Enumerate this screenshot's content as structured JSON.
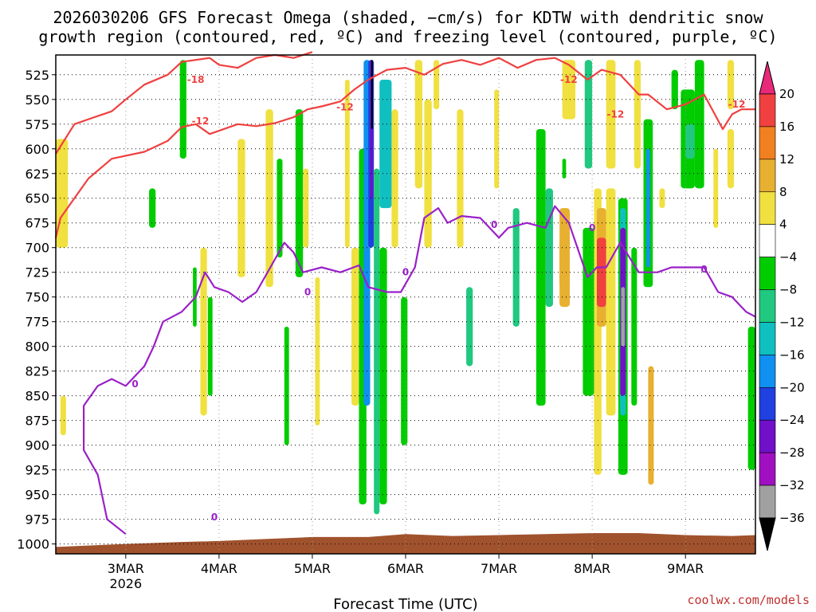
{
  "chart_data": {
    "type": "heatmap",
    "title": "2026030206 GFS Forecast Omega (shaded, −cm/s) for KDTW with dendritic snow",
    "subtitle": "growth region (contoured, red, ºC) and freezing level (contoured, purple, ºC)",
    "xlabel": "Forecast Time (UTC)",
    "credit": "coolwx.com/models",
    "y_ticks": [
      525,
      550,
      575,
      600,
      625,
      650,
      675,
      700,
      725,
      750,
      775,
      800,
      825,
      850,
      875,
      900,
      925,
      950,
      975,
      1000
    ],
    "ylim": [
      1010,
      505
    ],
    "x_ticks": [
      {
        "day": 1,
        "label": "3MAR",
        "sub": "2026"
      },
      {
        "day": 2,
        "label": "4MAR",
        "sub": ""
      },
      {
        "day": 3,
        "label": "5MAR",
        "sub": ""
      },
      {
        "day": 4,
        "label": "6MAR",
        "sub": ""
      },
      {
        "day": 5,
        "label": "7MAR",
        "sub": ""
      },
      {
        "day": 6,
        "label": "8MAR",
        "sub": ""
      },
      {
        "day": 7,
        "label": "9MAR",
        "sub": ""
      }
    ],
    "xlim": [
      0.25,
      7.75
    ],
    "colorbar": {
      "labels": [
        "20",
        "16",
        "12",
        "8",
        "4",
        "−4",
        "−8",
        "−12",
        "−16",
        "−20",
        "−24",
        "−28",
        "−32",
        "−36"
      ],
      "colors": [
        "#e8297a",
        "#f04040",
        "#f08020",
        "#e8b030",
        "#f0e040",
        "#ffffff",
        "#00cc00",
        "#20c880",
        "#10c0c0",
        "#1090f0",
        "#2040e0",
        "#7010c8",
        "#a010c0",
        "#a0a0a0",
        "#000000"
      ]
    },
    "series": [
      {
        "name": "-12",
        "color": "#f04040",
        "points": [
          [
            0.25,
            605
          ],
          [
            0.35,
            590
          ],
          [
            0.45,
            575
          ],
          [
            0.6,
            570
          ],
          [
            0.85,
            562
          ],
          [
            1.0,
            550
          ],
          [
            1.2,
            535
          ],
          [
            1.45,
            525
          ],
          [
            1.6,
            512
          ],
          [
            1.9,
            508
          ],
          [
            2.0,
            515
          ],
          [
            2.2,
            518
          ],
          [
            2.4,
            508
          ],
          [
            2.6,
            505
          ],
          [
            2.8,
            508
          ],
          [
            3.0,
            502
          ]
        ]
      },
      {
        "name": "-12",
        "color": "#f04040",
        "points": [
          [
            0.25,
            690
          ],
          [
            0.3,
            670
          ],
          [
            0.45,
            650
          ],
          [
            0.6,
            630
          ],
          [
            0.85,
            610
          ],
          [
            1.2,
            603
          ],
          [
            1.45,
            592
          ],
          [
            1.6,
            578
          ],
          [
            1.75,
            575
          ],
          [
            1.9,
            585
          ],
          [
            2.2,
            575
          ],
          [
            2.4,
            577
          ],
          [
            2.6,
            574
          ],
          [
            2.8,
            568
          ],
          [
            2.95,
            560
          ],
          [
            3.1,
            557
          ],
          [
            3.3,
            552
          ],
          [
            3.45,
            540
          ],
          [
            3.6,
            530
          ],
          [
            3.8,
            520
          ],
          [
            4.0,
            518
          ],
          [
            4.2,
            525
          ],
          [
            4.4,
            514
          ],
          [
            4.6,
            510
          ],
          [
            4.8,
            515
          ],
          [
            5.0,
            508
          ],
          [
            5.2,
            518
          ],
          [
            5.4,
            510
          ],
          [
            5.6,
            508
          ],
          [
            5.75,
            515
          ],
          [
            5.95,
            530
          ],
          [
            6.1,
            520
          ],
          [
            6.3,
            525
          ],
          [
            6.5,
            545
          ],
          [
            6.6,
            545
          ],
          [
            6.8,
            560
          ],
          [
            7.0,
            555
          ],
          [
            7.2,
            545
          ],
          [
            7.4,
            580
          ],
          [
            7.5,
            565
          ],
          [
            7.6,
            560
          ],
          [
            7.75,
            560
          ]
        ]
      },
      {
        "name": "0",
        "color": "#9a20c8",
        "points": [
          [
            1.0,
            990
          ],
          [
            0.8,
            975
          ],
          [
            0.7,
            930
          ],
          [
            0.55,
            905
          ],
          [
            0.55,
            860
          ],
          [
            0.7,
            840
          ],
          [
            0.85,
            833
          ],
          [
            1.0,
            840
          ],
          [
            1.2,
            820
          ],
          [
            1.3,
            800
          ],
          [
            1.4,
            775
          ],
          [
            1.6,
            765
          ],
          [
            1.75,
            750
          ],
          [
            1.85,
            725
          ],
          [
            1.95,
            740
          ],
          [
            2.1,
            745
          ],
          [
            2.25,
            755
          ],
          [
            2.4,
            745
          ],
          [
            2.55,
            720
          ],
          [
            2.7,
            695
          ],
          [
            2.8,
            705
          ],
          [
            2.9,
            725
          ],
          [
            3.1,
            720
          ],
          [
            3.3,
            725
          ],
          [
            3.5,
            718
          ],
          [
            3.6,
            740
          ],
          [
            3.8,
            745
          ],
          [
            3.95,
            745
          ],
          [
            4.1,
            720
          ],
          [
            4.2,
            670
          ],
          [
            4.35,
            660
          ],
          [
            4.45,
            675
          ],
          [
            4.6,
            668
          ],
          [
            4.8,
            670
          ],
          [
            5.0,
            690
          ],
          [
            5.1,
            680
          ],
          [
            5.3,
            675
          ],
          [
            5.5,
            680
          ],
          [
            5.6,
            658
          ],
          [
            5.75,
            675
          ],
          [
            5.95,
            730
          ],
          [
            6.05,
            720
          ],
          [
            6.15,
            720
          ],
          [
            6.3,
            695
          ],
          [
            6.5,
            725
          ],
          [
            6.7,
            725
          ],
          [
            6.85,
            720
          ],
          [
            7.0,
            720
          ],
          [
            7.2,
            720
          ],
          [
            7.35,
            745
          ],
          [
            7.5,
            750
          ],
          [
            7.65,
            765
          ],
          [
            7.75,
            770
          ]
        ]
      }
    ],
    "contour_labels": [
      {
        "text": "-18",
        "x": 1.75,
        "y": 530,
        "color": "#f04040"
      },
      {
        "text": "-12",
        "x": 1.8,
        "y": 572,
        "color": "#f04040"
      },
      {
        "text": "-12",
        "x": 3.35,
        "y": 558,
        "color": "#f04040"
      },
      {
        "text": "-12",
        "x": 5.75,
        "y": 530,
        "color": "#f04040"
      },
      {
        "text": "-12",
        "x": 6.25,
        "y": 565,
        "color": "#f04040"
      },
      {
        "text": "-12",
        "x": 7.55,
        "y": 555,
        "color": "#f04040"
      },
      {
        "text": "0",
        "x": 1.1,
        "y": 838,
        "color": "#9a20c8"
      },
      {
        "text": "0",
        "x": 1.95,
        "y": 973,
        "color": "#9a20c8"
      },
      {
        "text": "0",
        "x": 2.95,
        "y": 745,
        "color": "#9a20c8"
      },
      {
        "text": "0",
        "x": 4.0,
        "y": 725,
        "color": "#9a20c8"
      },
      {
        "text": "0",
        "x": 4.95,
        "y": 677,
        "color": "#9a20c8"
      },
      {
        "text": "0",
        "x": 6.0,
        "y": 680,
        "color": "#9a20c8"
      },
      {
        "text": "0",
        "x": 7.2,
        "y": 722,
        "color": "#9a20c8"
      }
    ],
    "shaded_regions": [
      {
        "x0": 0.25,
        "x1": 0.38,
        "y0": 590,
        "y1": 700,
        "color": "#f0e040"
      },
      {
        "x0": 0.3,
        "x1": 0.36,
        "y0": 850,
        "y1": 890,
        "color": "#f0e040"
      },
      {
        "x0": 1.25,
        "x1": 1.32,
        "y0": 640,
        "y1": 680,
        "color": "#00cc00"
      },
      {
        "x0": 1.58,
        "x1": 1.65,
        "y0": 510,
        "y1": 610,
        "color": "#00cc00"
      },
      {
        "x0": 1.72,
        "x1": 1.76,
        "y0": 720,
        "y1": 780,
        "color": "#00cc00"
      },
      {
        "x0": 1.8,
        "x1": 1.87,
        "y0": 700,
        "y1": 870,
        "color": "#f0e040"
      },
      {
        "x0": 1.88,
        "x1": 1.93,
        "y0": 750,
        "y1": 850,
        "color": "#00cc00"
      },
      {
        "x0": 2.2,
        "x1": 2.28,
        "y0": 590,
        "y1": 730,
        "color": "#f0e040"
      },
      {
        "x0": 2.5,
        "x1": 2.58,
        "y0": 560,
        "y1": 740,
        "color": "#f0e040"
      },
      {
        "x0": 2.62,
        "x1": 2.68,
        "y0": 610,
        "y1": 710,
        "color": "#00cc00"
      },
      {
        "x0": 2.7,
        "x1": 2.75,
        "y0": 780,
        "y1": 900,
        "color": "#00cc00"
      },
      {
        "x0": 2.82,
        "x1": 2.9,
        "y0": 560,
        "y1": 730,
        "color": "#00cc00"
      },
      {
        "x0": 2.9,
        "x1": 2.96,
        "y0": 620,
        "y1": 700,
        "color": "#f0e040"
      },
      {
        "x0": 3.03,
        "x1": 3.08,
        "y0": 730,
        "y1": 880,
        "color": "#f0e040"
      },
      {
        "x0": 3.35,
        "x1": 3.4,
        "y0": 530,
        "y1": 700,
        "color": "#f0e040"
      },
      {
        "x0": 3.42,
        "x1": 3.5,
        "y0": 700,
        "y1": 860,
        "color": "#f0e040"
      },
      {
        "x0": 3.5,
        "x1": 3.58,
        "y0": 600,
        "y1": 960,
        "color": "#00cc00"
      },
      {
        "x0": 3.55,
        "x1": 3.62,
        "y0": 510,
        "y1": 860,
        "color": "#1090f0"
      },
      {
        "x0": 3.6,
        "x1": 3.66,
        "y0": 510,
        "y1": 700,
        "color": "#2040e0"
      },
      {
        "x0": 3.62,
        "x1": 3.65,
        "y0": 510,
        "y1": 650,
        "color": "#7010c8"
      },
      {
        "x0": 3.63,
        "x1": 3.65,
        "y0": 510,
        "y1": 580,
        "color": "#000000"
      },
      {
        "x0": 3.66,
        "x1": 3.72,
        "y0": 620,
        "y1": 970,
        "color": "#20c880"
      },
      {
        "x0": 3.72,
        "x1": 3.8,
        "y0": 700,
        "y1": 960,
        "color": "#00cc00"
      },
      {
        "x0": 3.72,
        "x1": 3.85,
        "y0": 530,
        "y1": 660,
        "color": "#10c0c0"
      },
      {
        "x0": 3.85,
        "x1": 3.92,
        "y0": 560,
        "y1": 700,
        "color": "#f0e040"
      },
      {
        "x0": 3.95,
        "x1": 4.02,
        "y0": 750,
        "y1": 900,
        "color": "#00cc00"
      },
      {
        "x0": 4.1,
        "x1": 4.18,
        "y0": 510,
        "y1": 640,
        "color": "#f0e040"
      },
      {
        "x0": 4.2,
        "x1": 4.28,
        "y0": 550,
        "y1": 700,
        "color": "#f0e040"
      },
      {
        "x0": 4.3,
        "x1": 4.36,
        "y0": 510,
        "y1": 560,
        "color": "#f0e040"
      },
      {
        "x0": 4.55,
        "x1": 4.62,
        "y0": 560,
        "y1": 700,
        "color": "#f0e040"
      },
      {
        "x0": 4.65,
        "x1": 4.72,
        "y0": 740,
        "y1": 820,
        "color": "#20c880"
      },
      {
        "x0": 4.95,
        "x1": 5.0,
        "y0": 540,
        "y1": 640,
        "color": "#f0e040"
      },
      {
        "x0": 5.15,
        "x1": 5.22,
        "y0": 660,
        "y1": 780,
        "color": "#20c880"
      },
      {
        "x0": 5.4,
        "x1": 5.5,
        "y0": 580,
        "y1": 860,
        "color": "#00cc00"
      },
      {
        "x0": 5.5,
        "x1": 5.58,
        "y0": 640,
        "y1": 760,
        "color": "#20c880"
      },
      {
        "x0": 5.65,
        "x1": 5.75,
        "y0": 690,
        "y1": 740,
        "color": "#f08020"
      },
      {
        "x0": 5.65,
        "x1": 5.76,
        "y0": 660,
        "y1": 760,
        "color": "#e8b030"
      },
      {
        "x0": 5.68,
        "x1": 5.72,
        "y0": 610,
        "y1": 630,
        "color": "#00cc00"
      },
      {
        "x0": 5.68,
        "x1": 5.82,
        "y0": 510,
        "y1": 570,
        "color": "#f0e040"
      },
      {
        "x0": 5.92,
        "x1": 6.0,
        "y0": 510,
        "y1": 620,
        "color": "#20c880"
      },
      {
        "x0": 5.9,
        "x1": 6.02,
        "y0": 680,
        "y1": 850,
        "color": "#00cc00"
      },
      {
        "x0": 6.02,
        "x1": 6.1,
        "y0": 640,
        "y1": 930,
        "color": "#f0e040"
      },
      {
        "x0": 6.05,
        "x1": 6.15,
        "y0": 660,
        "y1": 780,
        "color": "#e8b030"
      },
      {
        "x0": 6.05,
        "x1": 6.15,
        "y0": 690,
        "y1": 760,
        "color": "#f04040"
      },
      {
        "x0": 6.15,
        "x1": 6.25,
        "y0": 510,
        "y1": 620,
        "color": "#f0e040"
      },
      {
        "x0": 6.15,
        "x1": 6.25,
        "y0": 640,
        "y1": 870,
        "color": "#f0e040"
      },
      {
        "x0": 6.28,
        "x1": 6.38,
        "y0": 650,
        "y1": 930,
        "color": "#00cc00"
      },
      {
        "x0": 6.3,
        "x1": 6.36,
        "y0": 660,
        "y1": 870,
        "color": "#10c0c0"
      },
      {
        "x0": 6.3,
        "x1": 6.36,
        "y0": 680,
        "y1": 850,
        "color": "#7010c8"
      },
      {
        "x0": 6.31,
        "x1": 6.35,
        "y0": 740,
        "y1": 800,
        "color": "#a0a0a0"
      },
      {
        "x0": 6.42,
        "x1": 6.48,
        "y0": 700,
        "y1": 860,
        "color": "#00cc00"
      },
      {
        "x0": 6.45,
        "x1": 6.52,
        "y0": 510,
        "y1": 620,
        "color": "#f0e040"
      },
      {
        "x0": 6.55,
        "x1": 6.65,
        "y0": 570,
        "y1": 740,
        "color": "#00cc00"
      },
      {
        "x0": 6.58,
        "x1": 6.62,
        "y0": 600,
        "y1": 720,
        "color": "#1090f0"
      },
      {
        "x0": 6.6,
        "x1": 6.66,
        "y0": 820,
        "y1": 940,
        "color": "#e8b030"
      },
      {
        "x0": 6.72,
        "x1": 6.78,
        "y0": 640,
        "y1": 660,
        "color": "#f0e040"
      },
      {
        "x0": 6.85,
        "x1": 6.92,
        "y0": 520,
        "y1": 560,
        "color": "#00cc00"
      },
      {
        "x0": 6.95,
        "x1": 7.1,
        "y0": 540,
        "y1": 640,
        "color": "#00cc00"
      },
      {
        "x0": 7.0,
        "x1": 7.1,
        "y0": 575,
        "y1": 610,
        "color": "#20c880"
      },
      {
        "x0": 7.1,
        "x1": 7.2,
        "y0": 510,
        "y1": 640,
        "color": "#00cc00"
      },
      {
        "x0": 7.3,
        "x1": 7.35,
        "y0": 600,
        "y1": 680,
        "color": "#f0e040"
      },
      {
        "x0": 7.45,
        "x1": 7.52,
        "y0": 510,
        "y1": 560,
        "color": "#f0e040"
      },
      {
        "x0": 7.45,
        "x1": 7.52,
        "y0": 580,
        "y1": 640,
        "color": "#f0e040"
      },
      {
        "x0": 7.67,
        "x1": 7.75,
        "y0": 780,
        "y1": 925,
        "color": "#00cc00"
      }
    ],
    "terrain": {
      "color": "#a0522d",
      "points": [
        [
          0.25,
          1003
        ],
        [
          1.0,
          1000
        ],
        [
          1.6,
          998
        ],
        [
          2.0,
          997
        ],
        [
          2.5,
          995
        ],
        [
          3.0,
          993
        ],
        [
          3.6,
          993
        ],
        [
          4.0,
          990
        ],
        [
          4.5,
          992
        ],
        [
          5.0,
          991
        ],
        [
          5.5,
          990
        ],
        [
          6.0,
          989
        ],
        [
          6.5,
          989
        ],
        [
          7.0,
          991
        ],
        [
          7.5,
          992
        ],
        [
          7.75,
          991
        ]
      ]
    }
  }
}
